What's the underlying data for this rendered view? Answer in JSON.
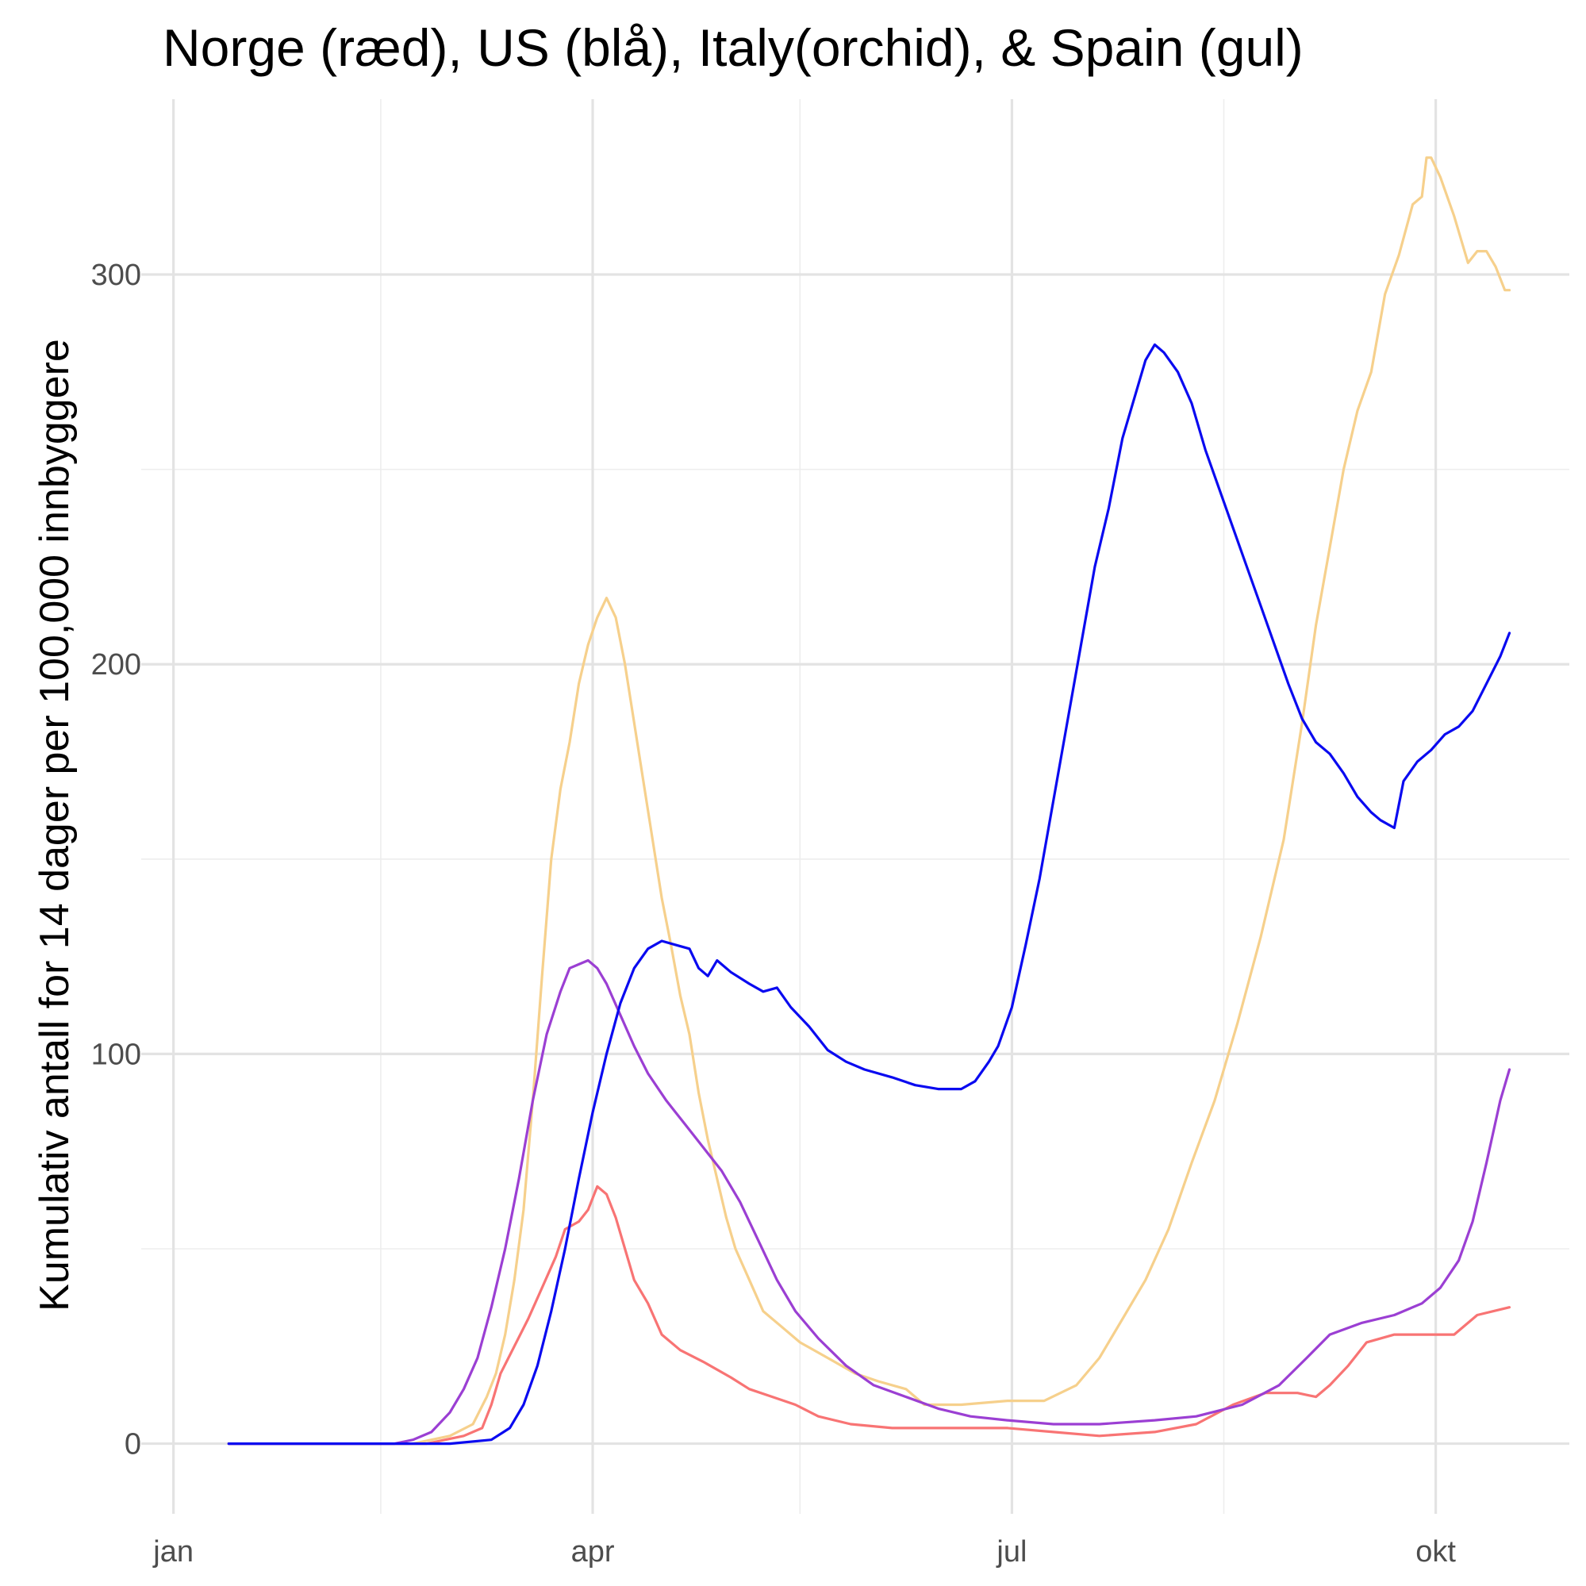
{
  "chart_data": {
    "type": "line",
    "title": "Norge (ræd), US (blå), Italy(orchid), & Spain (gul)",
    "xlabel": "",
    "ylabel": "Kumulativ antall for 14 dager per 100,000 innbyggere",
    "x_tick_labels": [
      "jan",
      "apr",
      "jul",
      "okt"
    ],
    "x_ticks": [
      "2020-01-01",
      "2020-04-01",
      "2020-07-01",
      "2020-10-01"
    ],
    "x_minor_ticks": [
      "2020-02-15",
      "2020-05-16",
      "2020-08-16"
    ],
    "xlim": [
      "2019-12-25",
      "2020-10-30"
    ],
    "y_ticks": [
      0,
      100,
      200,
      300
    ],
    "y_minor_ticks": [
      50,
      150,
      250
    ],
    "ylim": [
      -18,
      345
    ],
    "grid": true,
    "legend": "none",
    "series": [
      {
        "color": "#f6d08c",
        "points": [
          [
            "2020-01-13",
            0
          ],
          [
            "2020-02-22",
            0
          ],
          [
            "2020-03-01",
            2
          ],
          [
            "2020-03-06",
            5
          ],
          [
            "2020-03-09",
            12
          ],
          [
            "2020-03-11",
            18
          ],
          [
            "2020-03-13",
            28
          ],
          [
            "2020-03-15",
            42
          ],
          [
            "2020-03-17",
            60
          ],
          [
            "2020-03-19",
            88
          ],
          [
            "2020-03-21",
            120
          ],
          [
            "2020-03-23",
            150
          ],
          [
            "2020-03-25",
            168
          ],
          [
            "2020-03-27",
            180
          ],
          [
            "2020-03-29",
            195
          ],
          [
            "2020-03-31",
            205
          ],
          [
            "2020-04-02",
            212
          ],
          [
            "2020-04-04",
            217
          ],
          [
            "2020-04-06",
            212
          ],
          [
            "2020-04-08",
            200
          ],
          [
            "2020-04-10",
            185
          ],
          [
            "2020-04-12",
            170
          ],
          [
            "2020-04-14",
            155
          ],
          [
            "2020-04-16",
            140
          ],
          [
            "2020-04-18",
            128
          ],
          [
            "2020-04-20",
            115
          ],
          [
            "2020-04-22",
            105
          ],
          [
            "2020-04-24",
            90
          ],
          [
            "2020-04-26",
            78
          ],
          [
            "2020-04-28",
            68
          ],
          [
            "2020-04-30",
            58
          ],
          [
            "2020-05-02",
            50
          ],
          [
            "2020-05-05",
            42
          ],
          [
            "2020-05-08",
            34
          ],
          [
            "2020-05-12",
            30
          ],
          [
            "2020-05-16",
            26
          ],
          [
            "2020-05-22",
            22
          ],
          [
            "2020-05-28",
            18
          ],
          [
            "2020-06-02",
            16
          ],
          [
            "2020-06-08",
            14
          ],
          [
            "2020-06-12",
            10
          ],
          [
            "2020-06-20",
            10
          ],
          [
            "2020-06-30",
            11
          ],
          [
            "2020-07-08",
            11
          ],
          [
            "2020-07-15",
            15
          ],
          [
            "2020-07-20",
            22
          ],
          [
            "2020-07-25",
            32
          ],
          [
            "2020-07-30",
            42
          ],
          [
            "2020-08-04",
            55
          ],
          [
            "2020-08-09",
            72
          ],
          [
            "2020-08-14",
            88
          ],
          [
            "2020-08-19",
            108
          ],
          [
            "2020-08-24",
            130
          ],
          [
            "2020-08-29",
            155
          ],
          [
            "2020-09-02",
            185
          ],
          [
            "2020-09-05",
            210
          ],
          [
            "2020-09-08",
            230
          ],
          [
            "2020-09-11",
            250
          ],
          [
            "2020-09-14",
            265
          ],
          [
            "2020-09-17",
            275
          ],
          [
            "2020-09-20",
            295
          ],
          [
            "2020-09-23",
            305
          ],
          [
            "2020-09-26",
            318
          ],
          [
            "2020-09-28",
            320
          ],
          [
            "2020-09-29",
            330
          ],
          [
            "2020-09-30",
            330
          ],
          [
            "2020-10-02",
            325
          ],
          [
            "2020-10-05",
            315
          ],
          [
            "2020-10-08",
            303
          ],
          [
            "2020-10-10",
            306
          ],
          [
            "2020-10-12",
            306
          ],
          [
            "2020-10-14",
            302
          ],
          [
            "2020-10-16",
            296
          ],
          [
            "2020-10-17",
            296
          ]
        ]
      },
      {
        "color": "#f87474",
        "points": [
          [
            "2020-01-13",
            0
          ],
          [
            "2020-02-25",
            0
          ],
          [
            "2020-03-04",
            2
          ],
          [
            "2020-03-08",
            4
          ],
          [
            "2020-03-10",
            10
          ],
          [
            "2020-03-12",
            18
          ],
          [
            "2020-03-15",
            25
          ],
          [
            "2020-03-18",
            32
          ],
          [
            "2020-03-21",
            40
          ],
          [
            "2020-03-24",
            48
          ],
          [
            "2020-03-26",
            55
          ],
          [
            "2020-03-29",
            57
          ],
          [
            "2020-03-31",
            60
          ],
          [
            "2020-04-02",
            66
          ],
          [
            "2020-04-04",
            64
          ],
          [
            "2020-04-06",
            58
          ],
          [
            "2020-04-08",
            50
          ],
          [
            "2020-04-10",
            42
          ],
          [
            "2020-04-13",
            36
          ],
          [
            "2020-04-16",
            28
          ],
          [
            "2020-04-20",
            24
          ],
          [
            "2020-04-25",
            21
          ],
          [
            "2020-05-01",
            17
          ],
          [
            "2020-05-05",
            14
          ],
          [
            "2020-05-10",
            12
          ],
          [
            "2020-05-15",
            10
          ],
          [
            "2020-05-20",
            7
          ],
          [
            "2020-05-27",
            5
          ],
          [
            "2020-06-05",
            4
          ],
          [
            "2020-06-20",
            4
          ],
          [
            "2020-06-30",
            4
          ],
          [
            "2020-07-10",
            3
          ],
          [
            "2020-07-20",
            2
          ],
          [
            "2020-08-01",
            3
          ],
          [
            "2020-08-10",
            5
          ],
          [
            "2020-08-18",
            10
          ],
          [
            "2020-08-25",
            13
          ],
          [
            "2020-09-01",
            13
          ],
          [
            "2020-09-05",
            12
          ],
          [
            "2020-09-08",
            15
          ],
          [
            "2020-09-12",
            20
          ],
          [
            "2020-09-16",
            26
          ],
          [
            "2020-09-22",
            28
          ],
          [
            "2020-09-28",
            28
          ],
          [
            "2020-10-05",
            28
          ],
          [
            "2020-10-10",
            33
          ],
          [
            "2020-10-17",
            35
          ]
        ]
      },
      {
        "color": "#9b3fd3",
        "points": [
          [
            "2020-01-13",
            0
          ],
          [
            "2020-02-18",
            0
          ],
          [
            "2020-02-22",
            1
          ],
          [
            "2020-02-26",
            3
          ],
          [
            "2020-03-01",
            8
          ],
          [
            "2020-03-04",
            14
          ],
          [
            "2020-03-07",
            22
          ],
          [
            "2020-03-10",
            35
          ],
          [
            "2020-03-13",
            50
          ],
          [
            "2020-03-16",
            68
          ],
          [
            "2020-03-19",
            88
          ],
          [
            "2020-03-22",
            105
          ],
          [
            "2020-03-25",
            116
          ],
          [
            "2020-03-27",
            122
          ],
          [
            "2020-03-29",
            123
          ],
          [
            "2020-03-31",
            124
          ],
          [
            "2020-04-02",
            122
          ],
          [
            "2020-04-04",
            118
          ],
          [
            "2020-04-07",
            110
          ],
          [
            "2020-04-10",
            102
          ],
          [
            "2020-04-13",
            95
          ],
          [
            "2020-04-17",
            88
          ],
          [
            "2020-04-21",
            82
          ],
          [
            "2020-04-25",
            76
          ],
          [
            "2020-04-29",
            70
          ],
          [
            "2020-05-03",
            62
          ],
          [
            "2020-05-07",
            52
          ],
          [
            "2020-05-11",
            42
          ],
          [
            "2020-05-15",
            34
          ],
          [
            "2020-05-20",
            27
          ],
          [
            "2020-05-26",
            20
          ],
          [
            "2020-06-01",
            15
          ],
          [
            "2020-06-08",
            12
          ],
          [
            "2020-06-15",
            9
          ],
          [
            "2020-06-22",
            7
          ],
          [
            "2020-06-30",
            6
          ],
          [
            "2020-07-10",
            5
          ],
          [
            "2020-07-20",
            5
          ],
          [
            "2020-08-01",
            6
          ],
          [
            "2020-08-10",
            7
          ],
          [
            "2020-08-20",
            10
          ],
          [
            "2020-08-28",
            15
          ],
          [
            "2020-09-03",
            22
          ],
          [
            "2020-09-08",
            28
          ],
          [
            "2020-09-15",
            31
          ],
          [
            "2020-09-22",
            33
          ],
          [
            "2020-09-28",
            36
          ],
          [
            "2020-10-02",
            40
          ],
          [
            "2020-10-06",
            47
          ],
          [
            "2020-10-09",
            57
          ],
          [
            "2020-10-12",
            72
          ],
          [
            "2020-10-15",
            88
          ],
          [
            "2020-10-17",
            96
          ]
        ]
      },
      {
        "color": "#0a0af0",
        "points": [
          [
            "2020-01-13",
            0
          ],
          [
            "2020-03-01",
            0
          ],
          [
            "2020-03-10",
            1
          ],
          [
            "2020-03-14",
            4
          ],
          [
            "2020-03-17",
            10
          ],
          [
            "2020-03-20",
            20
          ],
          [
            "2020-03-23",
            34
          ],
          [
            "2020-03-26",
            50
          ],
          [
            "2020-03-29",
            68
          ],
          [
            "2020-04-01",
            85
          ],
          [
            "2020-04-04",
            100
          ],
          [
            "2020-04-07",
            113
          ],
          [
            "2020-04-10",
            122
          ],
          [
            "2020-04-13",
            127
          ],
          [
            "2020-04-16",
            129
          ],
          [
            "2020-04-19",
            128
          ],
          [
            "2020-04-22",
            127
          ],
          [
            "2020-04-24",
            122
          ],
          [
            "2020-04-26",
            120
          ],
          [
            "2020-04-28",
            124
          ],
          [
            "2020-05-01",
            121
          ],
          [
            "2020-05-05",
            118
          ],
          [
            "2020-05-08",
            116
          ],
          [
            "2020-05-11",
            117
          ],
          [
            "2020-05-14",
            112
          ],
          [
            "2020-05-18",
            107
          ],
          [
            "2020-05-22",
            101
          ],
          [
            "2020-05-26",
            98
          ],
          [
            "2020-05-30",
            96
          ],
          [
            "2020-06-05",
            94
          ],
          [
            "2020-06-10",
            92
          ],
          [
            "2020-06-15",
            91
          ],
          [
            "2020-06-20",
            91
          ],
          [
            "2020-06-23",
            93
          ],
          [
            "2020-06-26",
            98
          ],
          [
            "2020-06-28",
            102
          ],
          [
            "2020-07-01",
            112
          ],
          [
            "2020-07-04",
            128
          ],
          [
            "2020-07-07",
            145
          ],
          [
            "2020-07-10",
            165
          ],
          [
            "2020-07-13",
            185
          ],
          [
            "2020-07-16",
            205
          ],
          [
            "2020-07-19",
            225
          ],
          [
            "2020-07-22",
            240
          ],
          [
            "2020-07-25",
            258
          ],
          [
            "2020-07-28",
            270
          ],
          [
            "2020-07-30",
            278
          ],
          [
            "2020-08-01",
            282
          ],
          [
            "2020-08-03",
            280
          ],
          [
            "2020-08-06",
            275
          ],
          [
            "2020-08-09",
            267
          ],
          [
            "2020-08-12",
            255
          ],
          [
            "2020-08-15",
            245
          ],
          [
            "2020-08-18",
            235
          ],
          [
            "2020-08-21",
            225
          ],
          [
            "2020-08-24",
            215
          ],
          [
            "2020-08-27",
            205
          ],
          [
            "2020-08-30",
            195
          ],
          [
            "2020-09-02",
            186
          ],
          [
            "2020-09-05",
            180
          ],
          [
            "2020-09-08",
            177
          ],
          [
            "2020-09-11",
            172
          ],
          [
            "2020-09-14",
            166
          ],
          [
            "2020-09-17",
            162
          ],
          [
            "2020-09-19",
            160
          ],
          [
            "2020-09-22",
            158
          ],
          [
            "2020-09-24",
            170
          ],
          [
            "2020-09-27",
            175
          ],
          [
            "2020-09-30",
            178
          ],
          [
            "2020-10-03",
            182
          ],
          [
            "2020-10-06",
            184
          ],
          [
            "2020-10-09",
            188
          ],
          [
            "2020-10-12",
            195
          ],
          [
            "2020-10-15",
            202
          ],
          [
            "2020-10-17",
            208
          ]
        ]
      }
    ]
  }
}
